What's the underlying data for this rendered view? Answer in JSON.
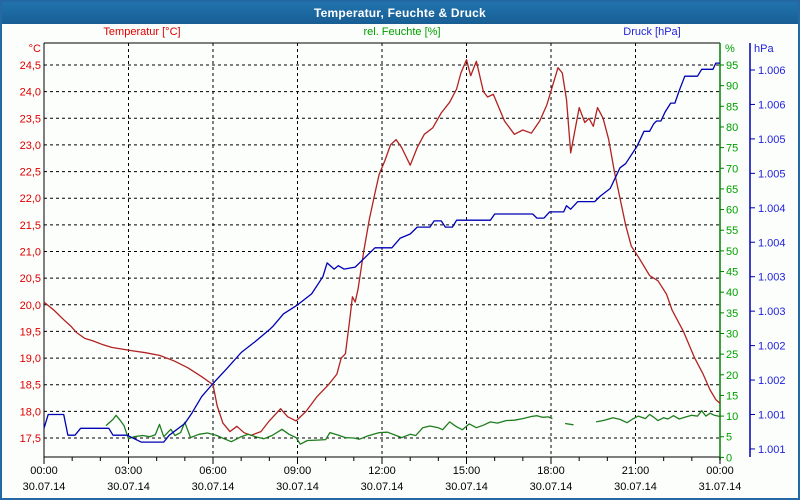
{
  "window": {
    "title": "Temperatur, Feuchte & Druck"
  },
  "colors": {
    "header_bg": "#1b6aa3",
    "header_text": "#ffffff",
    "border": "#2569a4",
    "background": "#fbfefb",
    "frame": "#000000",
    "grid": "#000000",
    "temperature_text": "#e00000",
    "temperature_line": "#b22222",
    "humidity_text": "#00a000",
    "humidity_line": "#1e7d1e",
    "humidity_axis": "#008000",
    "pressure_text": "#2222dd",
    "pressure_line": "#0000b4"
  },
  "chart_data": {
    "type": "line",
    "title": "Temperatur, Feuchte & Druck",
    "grid": true,
    "legend_position": "top",
    "series_labels": [
      {
        "text": "Temperatur [°C]"
      },
      {
        "text": "rel. Feuchte [%]"
      },
      {
        "text": "Druck [hPa]"
      }
    ],
    "x_axis": {
      "hours_span": 24,
      "minor_tick_every_hours": 1,
      "major_tick_every_hours": 3,
      "tick_times": [
        "00:00",
        "03:00",
        "06:00",
        "09:00",
        "12:00",
        "15:00",
        "18:00",
        "21:00",
        "00:00"
      ],
      "tick_dates": [
        "30.07.14",
        "30.07.14",
        "30.07.14",
        "30.07.14",
        "30.07.14",
        "30.07.14",
        "30.07.14",
        "30.07.14",
        "31.07.14"
      ]
    },
    "y_axes": [
      {
        "id": "temperature",
        "side": "left",
        "unit": "°C",
        "min": 17.5,
        "max": 24.5,
        "tick_labels": [
          "24,5",
          "24,0",
          "23,5",
          "23,0",
          "22,5",
          "22,0",
          "21,5",
          "21,0",
          "20,5",
          "20,0",
          "19,5",
          "19,0",
          "18,5",
          "18,0",
          "17,5"
        ]
      },
      {
        "id": "humidity",
        "side": "right",
        "unit": "%",
        "min": 0,
        "max": 95,
        "tick_labels": [
          "95",
          "90",
          "85",
          "80",
          "75",
          "70",
          "65",
          "60",
          "55",
          "50",
          "45",
          "40",
          "35",
          "30",
          "25",
          "20",
          "15",
          "10",
          "5",
          "0"
        ]
      },
      {
        "id": "pressure",
        "side": "right-outer",
        "unit": "hPa",
        "min": 1.0005,
        "max": 1.006,
        "tick_labels": [
          "1.006",
          "1.006",
          "1.005",
          "1.005",
          "1.004",
          "1.004",
          "1.003",
          "1.003",
          "1.002",
          "1.002",
          "1.001",
          "1.001"
        ]
      }
    ],
    "series": [
      {
        "name": "Temperatur [°C]",
        "axis": "temperature",
        "points": [
          [
            0,
            20.05
          ],
          [
            0.35,
            19.9
          ],
          [
            0.7,
            19.72
          ],
          [
            0.95,
            19.6
          ],
          [
            1.15,
            19.48
          ],
          [
            1.45,
            19.37
          ],
          [
            1.75,
            19.32
          ],
          [
            2.1,
            19.25
          ],
          [
            2.4,
            19.2
          ],
          [
            2.75,
            19.17
          ],
          [
            3.1,
            19.14
          ],
          [
            3.6,
            19.1
          ],
          [
            4.1,
            19.05
          ],
          [
            4.6,
            18.95
          ],
          [
            5.1,
            18.82
          ],
          [
            5.6,
            18.65
          ],
          [
            6.0,
            18.5
          ],
          [
            6.15,
            18.1
          ],
          [
            6.35,
            17.78
          ],
          [
            6.6,
            17.62
          ],
          [
            6.85,
            17.72
          ],
          [
            7.1,
            17.6
          ],
          [
            7.35,
            17.55
          ],
          [
            7.7,
            17.62
          ],
          [
            8.0,
            17.82
          ],
          [
            8.4,
            18.05
          ],
          [
            8.65,
            17.9
          ],
          [
            8.95,
            17.82
          ],
          [
            9.3,
            18.0
          ],
          [
            9.7,
            18.28
          ],
          [
            10.1,
            18.5
          ],
          [
            10.4,
            18.7
          ],
          [
            10.55,
            19.0
          ],
          [
            10.7,
            19.08
          ],
          [
            10.85,
            19.7
          ],
          [
            10.95,
            20.15
          ],
          [
            11.05,
            20.05
          ],
          [
            11.15,
            20.3
          ],
          [
            11.35,
            21.0
          ],
          [
            11.55,
            21.6
          ],
          [
            11.75,
            22.1
          ],
          [
            11.9,
            22.45
          ],
          [
            12.1,
            22.7
          ],
          [
            12.3,
            23.0
          ],
          [
            12.5,
            23.1
          ],
          [
            12.7,
            22.95
          ],
          [
            13.0,
            22.62
          ],
          [
            13.25,
            22.95
          ],
          [
            13.5,
            23.2
          ],
          [
            13.8,
            23.32
          ],
          [
            14.1,
            23.6
          ],
          [
            14.4,
            23.8
          ],
          [
            14.65,
            24.05
          ],
          [
            14.8,
            24.35
          ],
          [
            15.0,
            24.6
          ],
          [
            15.15,
            24.3
          ],
          [
            15.35,
            24.57
          ],
          [
            15.6,
            24.0
          ],
          [
            15.75,
            23.9
          ],
          [
            15.95,
            23.95
          ],
          [
            16.35,
            23.45
          ],
          [
            16.7,
            23.2
          ],
          [
            17.0,
            23.28
          ],
          [
            17.3,
            23.22
          ],
          [
            17.6,
            23.45
          ],
          [
            17.85,
            23.75
          ],
          [
            18.05,
            24.1
          ],
          [
            18.25,
            24.45
          ],
          [
            18.4,
            24.35
          ],
          [
            18.55,
            23.85
          ],
          [
            18.7,
            22.85
          ],
          [
            19.0,
            23.7
          ],
          [
            19.2,
            23.42
          ],
          [
            19.35,
            23.5
          ],
          [
            19.5,
            23.35
          ],
          [
            19.65,
            23.7
          ],
          [
            19.85,
            23.5
          ],
          [
            20.05,
            23.1
          ],
          [
            20.25,
            22.5
          ],
          [
            20.45,
            22.0
          ],
          [
            20.65,
            21.5
          ],
          [
            20.85,
            21.1
          ],
          [
            21.1,
            20.9
          ],
          [
            21.5,
            20.55
          ],
          [
            21.8,
            20.45
          ],
          [
            22.1,
            20.2
          ],
          [
            22.3,
            19.9
          ],
          [
            22.7,
            19.5
          ],
          [
            23.1,
            19.0
          ],
          [
            23.4,
            18.7
          ],
          [
            23.65,
            18.4
          ],
          [
            23.85,
            18.22
          ],
          [
            24,
            18.15
          ]
        ]
      },
      {
        "name": "rel. Feuchte [%]",
        "axis": "humidity",
        "points": [
          [
            2.2,
            7.7
          ],
          [
            2.45,
            9.2
          ],
          [
            2.56,
            10.2
          ],
          [
            2.7,
            9.0
          ],
          [
            2.84,
            7.7
          ],
          [
            3.0,
            4.5
          ],
          [
            3.2,
            5.0
          ],
          [
            3.5,
            5.3
          ],
          [
            3.75,
            5.0
          ],
          [
            3.95,
            5.5
          ],
          [
            4.1,
            8.0
          ],
          [
            4.25,
            5.0
          ],
          [
            4.5,
            6.8
          ],
          [
            4.65,
            5.3
          ],
          [
            4.85,
            6.0
          ],
          [
            5.0,
            8.5
          ],
          [
            5.2,
            4.8
          ],
          [
            5.5,
            5.6
          ],
          [
            5.8,
            5.9
          ],
          [
            6.1,
            5.4
          ],
          [
            6.4,
            4.5
          ],
          [
            6.65,
            3.8
          ],
          [
            7.0,
            5.0
          ],
          [
            7.25,
            5.6
          ],
          [
            7.5,
            5.0
          ],
          [
            7.8,
            4.5
          ],
          [
            8.1,
            5.3
          ],
          [
            8.45,
            6.8
          ],
          [
            8.7,
            5.6
          ],
          [
            8.95,
            4.8
          ],
          [
            9.1,
            3.2
          ],
          [
            9.35,
            4.1
          ],
          [
            9.7,
            4.2
          ],
          [
            10.0,
            4.3
          ],
          [
            10.15,
            6.0
          ],
          [
            10.45,
            5.4
          ],
          [
            10.7,
            4.8
          ],
          [
            11.0,
            4.7
          ],
          [
            11.2,
            4.4
          ],
          [
            11.5,
            5.2
          ],
          [
            11.9,
            6.0
          ],
          [
            12.2,
            6.1
          ],
          [
            12.5,
            5.3
          ],
          [
            12.7,
            4.8
          ],
          [
            13.0,
            5.6
          ],
          [
            13.2,
            5.3
          ],
          [
            13.45,
            7.2
          ],
          [
            13.7,
            7.6
          ],
          [
            14.0,
            7.2
          ],
          [
            14.15,
            6.7
          ],
          [
            14.4,
            8.6
          ],
          [
            14.65,
            7.4
          ],
          [
            14.85,
            6.7
          ],
          [
            15.1,
            8.1
          ],
          [
            15.35,
            7.2
          ],
          [
            15.6,
            7.8
          ],
          [
            15.85,
            8.6
          ],
          [
            16.1,
            8.3
          ],
          [
            16.4,
            8.9
          ],
          [
            16.7,
            9.0
          ],
          [
            17.0,
            9.4
          ],
          [
            17.3,
            9.9
          ],
          [
            17.5,
            10.1
          ],
          [
            17.7,
            9.7
          ],
          [
            17.9,
            9.8
          ],
          [
            18.05,
            9.4
          ],
          null,
          [
            18.5,
            8.2
          ],
          [
            18.8,
            7.9
          ],
          null,
          [
            19.6,
            8.6
          ],
          [
            19.9,
            9.0
          ],
          [
            20.2,
            9.6
          ],
          [
            20.45,
            9.2
          ],
          [
            20.7,
            8.4
          ],
          [
            20.9,
            9.3
          ],
          [
            21.1,
            10.0
          ],
          [
            21.35,
            9.4
          ],
          [
            21.5,
            10.4
          ],
          [
            21.65,
            9.7
          ],
          [
            21.8,
            8.9
          ],
          [
            22.0,
            9.6
          ],
          [
            22.15,
            9.3
          ],
          [
            22.35,
            10.1
          ],
          [
            22.55,
            9.3
          ],
          [
            22.75,
            9.7
          ],
          [
            23.0,
            10.2
          ],
          [
            23.2,
            10.0
          ],
          [
            23.35,
            11.3
          ],
          [
            23.5,
            10.0
          ],
          [
            23.65,
            10.7
          ],
          [
            23.8,
            10.2
          ],
          [
            24,
            9.9
          ]
        ]
      },
      {
        "name": "Druck [hPa]",
        "axis": "pressure",
        "points": [
          [
            0,
            1.0008
          ],
          [
            0.15,
            1.001
          ],
          [
            0.7,
            1.001
          ],
          [
            0.85,
            1.0007
          ],
          [
            1.1,
            1.0007
          ],
          [
            1.3,
            1.0008
          ],
          [
            2.3,
            1.0008
          ],
          [
            2.45,
            1.0007
          ],
          [
            2.95,
            1.0007
          ],
          [
            3.45,
            1.0006
          ],
          [
            4.25,
            1.0006
          ],
          [
            4.45,
            1.0007
          ],
          [
            5.0,
            1.00087
          ],
          [
            5.25,
            1.00102
          ],
          [
            5.6,
            1.00126
          ],
          [
            6.0,
            1.00145
          ],
          [
            6.5,
            1.00167
          ],
          [
            7.0,
            1.0019
          ],
          [
            7.5,
            1.00206
          ],
          [
            8.0,
            1.00223
          ],
          [
            8.15,
            1.00229
          ],
          [
            8.5,
            1.00246
          ],
          [
            9.0,
            1.00259
          ],
          [
            9.5,
            1.00275
          ],
          [
            9.9,
            1.003
          ],
          [
            10.05,
            1.0032
          ],
          [
            10.3,
            1.00311
          ],
          [
            10.45,
            1.00316
          ],
          [
            10.65,
            1.00311
          ],
          [
            11.05,
            1.00314
          ],
          [
            11.35,
            1.00326
          ],
          [
            11.55,
            1.00334
          ],
          [
            11.75,
            1.00342
          ],
          [
            12.35,
            1.00342
          ],
          [
            12.65,
            1.00356
          ],
          [
            13.0,
            1.00362
          ],
          [
            13.25,
            1.00372
          ],
          [
            13.7,
            1.00372
          ],
          [
            13.85,
            1.00381
          ],
          [
            14.1,
            1.00381
          ],
          [
            14.25,
            1.00372
          ],
          [
            14.5,
            1.00372
          ],
          [
            14.65,
            1.00382
          ],
          [
            15.85,
            1.00382
          ],
          [
            16.0,
            1.00391
          ],
          [
            17.35,
            1.00391
          ],
          [
            17.5,
            1.00385
          ],
          [
            17.75,
            1.00385
          ],
          [
            17.95,
            1.00394
          ],
          [
            18.45,
            1.00394
          ],
          [
            18.55,
            1.00403
          ],
          [
            18.7,
            1.00398
          ],
          [
            18.95,
            1.00409
          ],
          [
            19.55,
            1.00409
          ],
          [
            19.75,
            1.00417
          ],
          [
            20.1,
            1.00428
          ],
          [
            20.45,
            1.00458
          ],
          [
            20.65,
            1.00464
          ],
          [
            21.05,
            1.00489
          ],
          [
            21.3,
            1.00511
          ],
          [
            21.5,
            1.00511
          ],
          [
            21.65,
            1.00522
          ],
          [
            21.75,
            1.00526
          ],
          [
            21.9,
            1.00526
          ],
          [
            22.05,
            1.00539
          ],
          [
            22.25,
            1.00552
          ],
          [
            22.4,
            1.00552
          ],
          [
            22.55,
            1.0057
          ],
          [
            22.75,
            1.00591
          ],
          [
            23.2,
            1.00591
          ],
          [
            23.35,
            1.00601
          ],
          [
            23.75,
            1.00601
          ],
          [
            23.85,
            1.0061
          ],
          [
            24,
            1.0061
          ]
        ]
      }
    ]
  }
}
